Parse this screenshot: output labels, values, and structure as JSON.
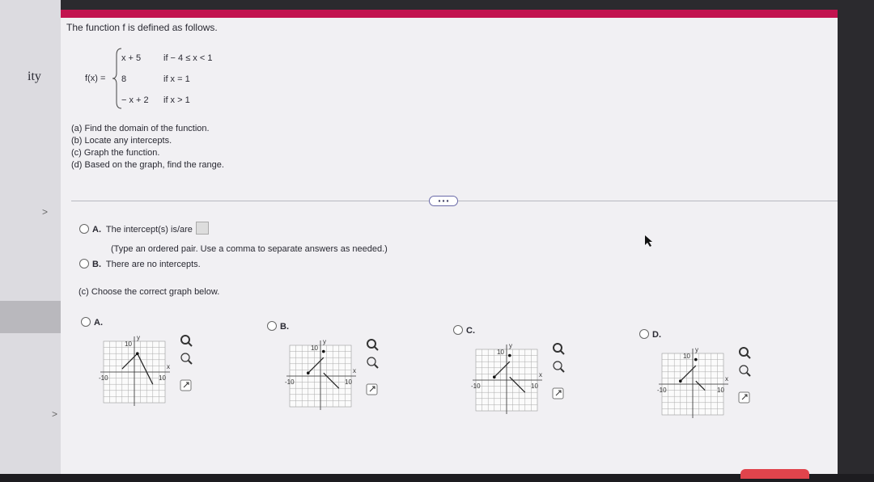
{
  "sidebar": {
    "text": "ity"
  },
  "question": {
    "intro": "The function f is defined as follows.",
    "function_name": "f(x) =",
    "pieces": [
      {
        "expr": "x + 5",
        "condition": "if − 4 ≤ x < 1"
      },
      {
        "expr": "8",
        "condition": "if x = 1"
      },
      {
        "expr": "− x + 2",
        "condition": "if x > 1"
      }
    ],
    "parts": [
      "(a) Find the domain of the function.",
      "(b) Locate any intercepts.",
      "(c) Graph the function.",
      "(d) Based on the graph, find the range."
    ]
  },
  "answer_b": {
    "options": [
      {
        "letter": "A.",
        "text": "The intercept(s) is/are",
        "note": "(Type an ordered pair. Use a comma to separate answers as needed.)"
      },
      {
        "letter": "B.",
        "text": "There are no intercepts."
      }
    ]
  },
  "answer_c": {
    "prompt": "(c) Choose the correct graph below.",
    "options": [
      {
        "letter": "A.",
        "y_max": "10",
        "x_min": "-10",
        "x_max": "10",
        "x_axis": "x",
        "y_axis": "y"
      },
      {
        "letter": "B.",
        "y_max": "10",
        "x_min": "-10",
        "x_max": "10",
        "x_axis": "x",
        "y_axis": "y"
      },
      {
        "letter": "C.",
        "y_max": "10",
        "x_min": "-10",
        "x_max": "10",
        "x_axis": "x",
        "y_axis": "y"
      },
      {
        "letter": "D.",
        "y_max": "10",
        "x_min": "-10",
        "x_max": "10",
        "x_axis": "x",
        "y_axis": "y"
      }
    ]
  }
}
